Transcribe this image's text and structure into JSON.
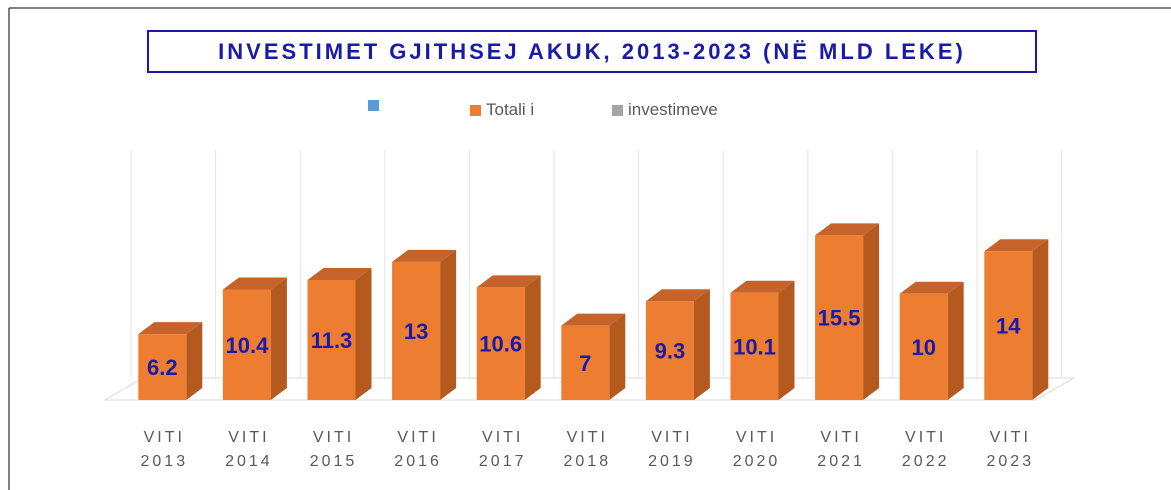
{
  "chart_data": {
    "type": "bar3d",
    "title": "INVESTIMET GJITHSEJ AKUK, 2013-2023 (NË MLD LEKE)",
    "legend": [
      {
        "color": "#5b9bd5"
      },
      {
        "name": "Totali i",
        "color": "#ed7d31"
      },
      {
        "name": "investimeve",
        "color": "#a5a5a5"
      }
    ],
    "categories": [
      "VITI 2013",
      "VITI 2014",
      "VITI 2015",
      "VITI 2016",
      "VITI 2017",
      "VITI 2018",
      "VITI 2019",
      "VITI 2020",
      "VITI 2021",
      "VITI 2022",
      "VITI 2023"
    ],
    "values": [
      6.2,
      10.4,
      11.3,
      13,
      10.6,
      7,
      9.3,
      10.1,
      15.5,
      10,
      14
    ],
    "color": "#ed7d31",
    "ylim": [
      0,
      16
    ]
  }
}
